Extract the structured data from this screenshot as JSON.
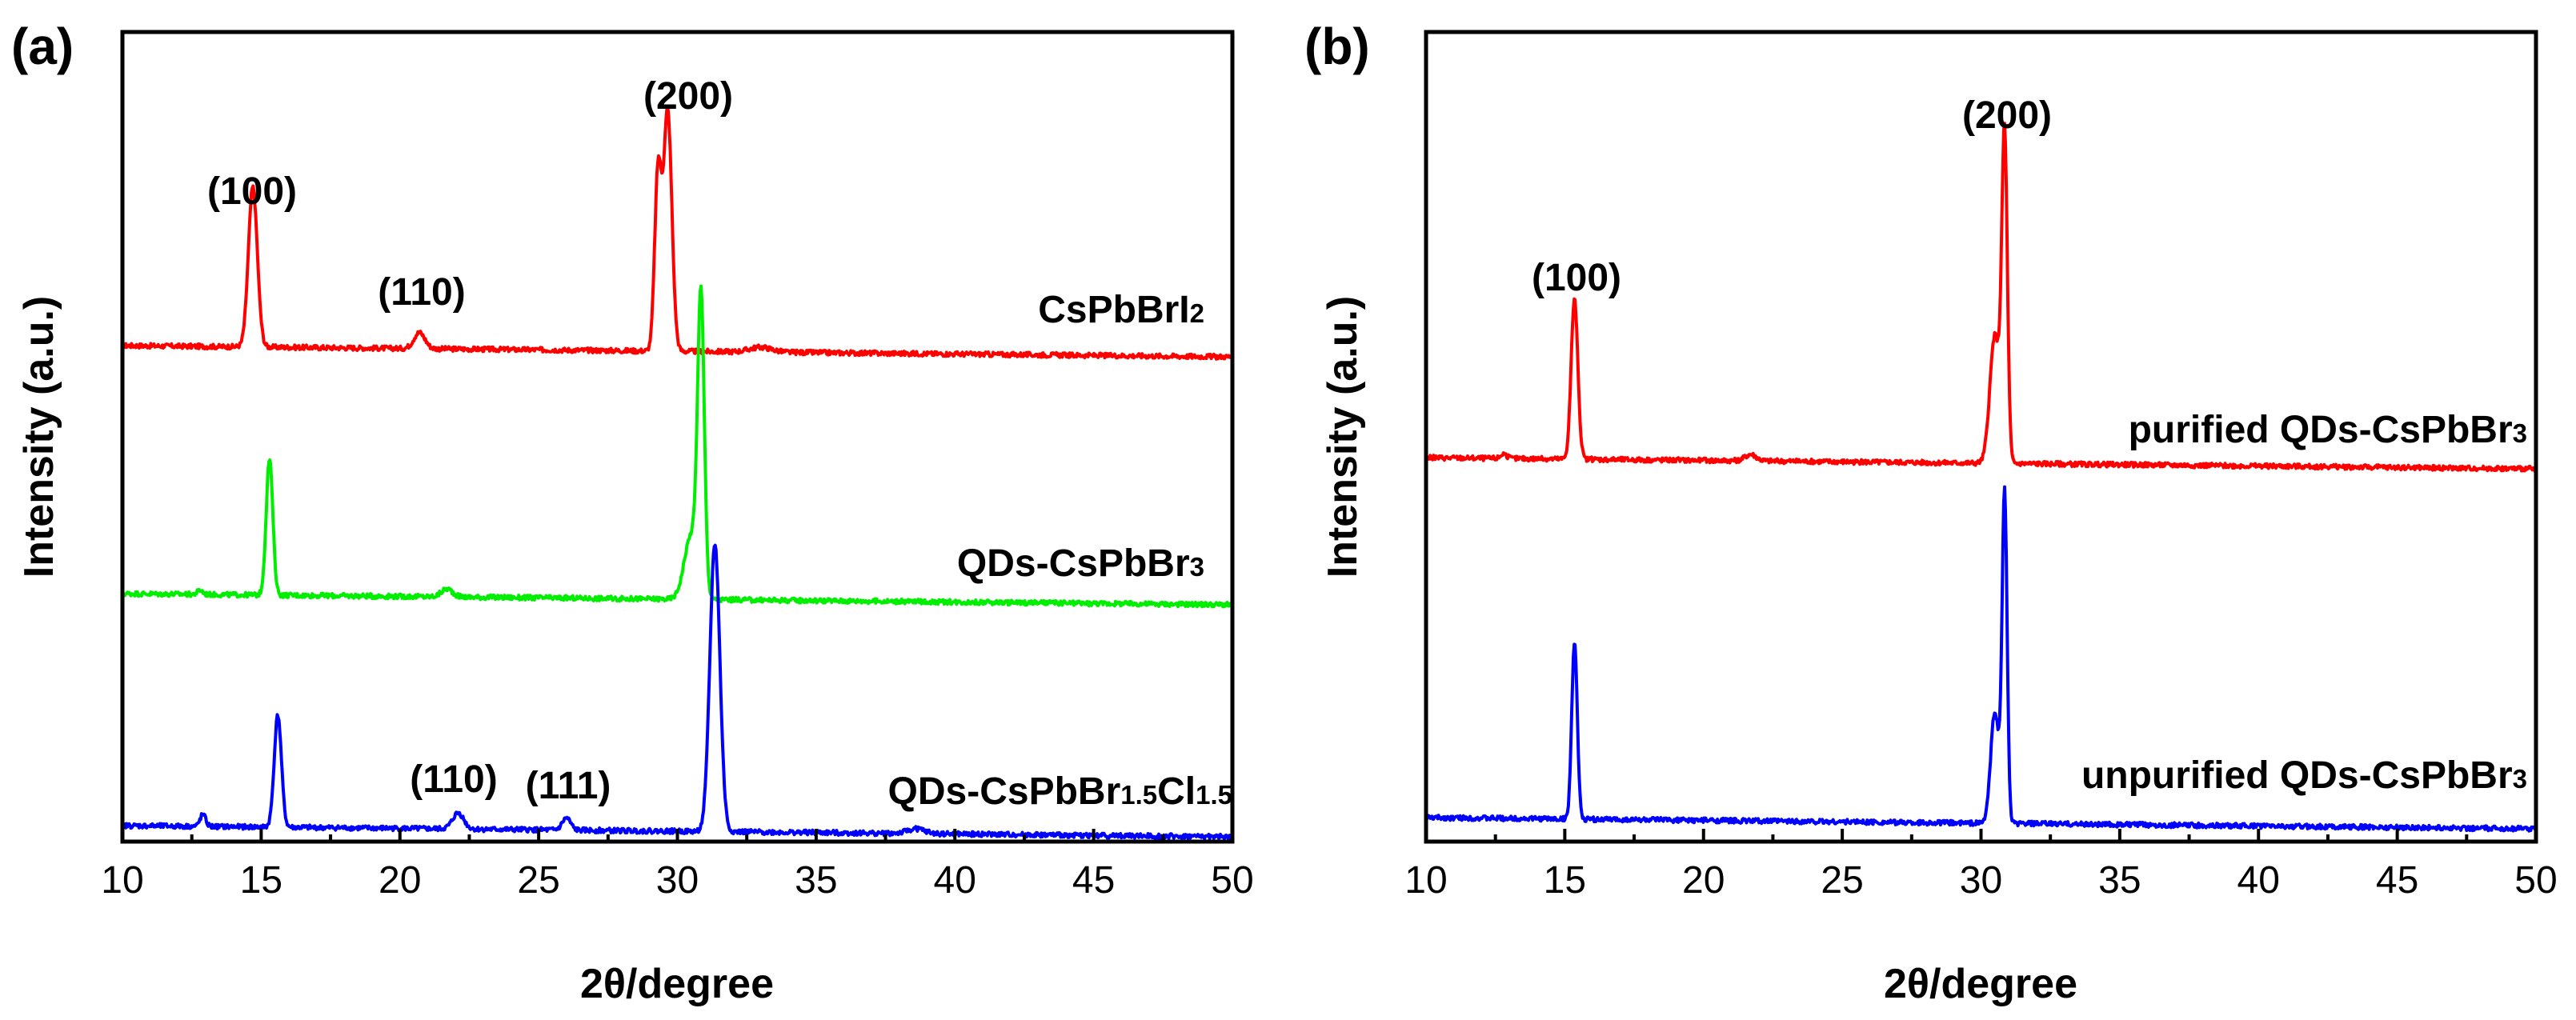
{
  "chart_data": [
    {
      "panel_label": "(a)",
      "type": "line",
      "xlabel": "2θ/degree",
      "ylabel": "Intensity (a.u.)",
      "xlim": [
        10,
        50
      ],
      "xticks": [
        "10",
        "15",
        "20",
        "25",
        "30",
        "35",
        "40",
        "45",
        "50"
      ],
      "series": [
        {
          "name": "CsPbBrI2",
          "label_main": "CsPbBrI",
          "label_sub": "2",
          "color": "#ff0000",
          "baseline": 0.0,
          "offset": 0.62,
          "peaks": [
            [
              14.7,
              0.2,
              0.16
            ],
            [
              20.7,
              0.02,
              0.2
            ],
            [
              29.3,
              0.22,
              0.12
            ],
            [
              29.65,
              0.3,
              0.15
            ],
            [
              33.0,
              0.006,
              0.4
            ]
          ]
        },
        {
          "name": "QDs-CsPbBr3",
          "label_main": "QDs-CsPbBr",
          "label_sub": "3",
          "color": "#00ee00",
          "offset": 0.31,
          "peaks": [
            [
              12.8,
              0.005,
              0.1
            ],
            [
              15.3,
              0.17,
              0.12
            ],
            [
              21.7,
              0.01,
              0.2
            ],
            [
              30.5,
              0.08,
              0.25
            ],
            [
              30.85,
              0.36,
              0.12
            ]
          ]
        },
        {
          "name": "QDs-CsPbBr1.5Cl1.5",
          "label_main": "QDs-CsPbBr",
          "label_sub": "1.5",
          "label_main2": "Cl",
          "label_sub2": "1.5",
          "color": "#0000ff",
          "offset": 0.02,
          "peaks": [
            [
              12.9,
              0.015,
              0.1
            ],
            [
              15.6,
              0.14,
              0.13
            ],
            [
              22.1,
              0.02,
              0.2
            ],
            [
              26.0,
              0.015,
              0.15
            ],
            [
              31.35,
              0.36,
              0.18
            ],
            [
              38.6,
              0.006,
              0.3
            ]
          ]
        }
      ],
      "annotations": [
        {
          "text": "(100)",
          "x": 14.7
        },
        {
          "text": "(110)",
          "x": 21.0
        },
        {
          "text": "(200)",
          "x": 29.6
        },
        {
          "text": "(110)",
          "x": 22.1
        },
        {
          "text": "(111)",
          "x": 26.1
        }
      ]
    },
    {
      "panel_label": "(b)",
      "type": "line",
      "xlabel": "2θ/degree",
      "ylabel": "Intensity (a.u.)",
      "xlim": [
        10,
        50
      ],
      "xticks": [
        "10",
        "15",
        "20",
        "25",
        "30",
        "35",
        "40",
        "45",
        "50"
      ],
      "series": [
        {
          "name": "purified QDs-CsPbBr3",
          "label_main": "purified QDs-CsPbBr",
          "label_sub": "3",
          "color": "#ff0000",
          "offset": 0.48,
          "peaks": [
            [
              12.8,
              0.006,
              0.1
            ],
            [
              15.35,
              0.2,
              0.12
            ],
            [
              21.7,
              0.008,
              0.2
            ],
            [
              30.5,
              0.16,
              0.18
            ],
            [
              30.85,
              0.4,
              0.1
            ]
          ]
        },
        {
          "name": "unpurified QDs-CsPbBr3",
          "label_main": "unpurified QDs-CsPbBr",
          "label_sub": "3",
          "color": "#0000ff",
          "offset": 0.03,
          "peaks": [
            [
              15.35,
              0.22,
              0.1
            ],
            [
              30.5,
              0.14,
              0.15
            ],
            [
              30.85,
              0.41,
              0.09
            ]
          ]
        }
      ],
      "annotations": [
        {
          "text": "(100)",
          "x": 15.3
        },
        {
          "text": "(200)",
          "x": 30.9
        }
      ]
    }
  ]
}
